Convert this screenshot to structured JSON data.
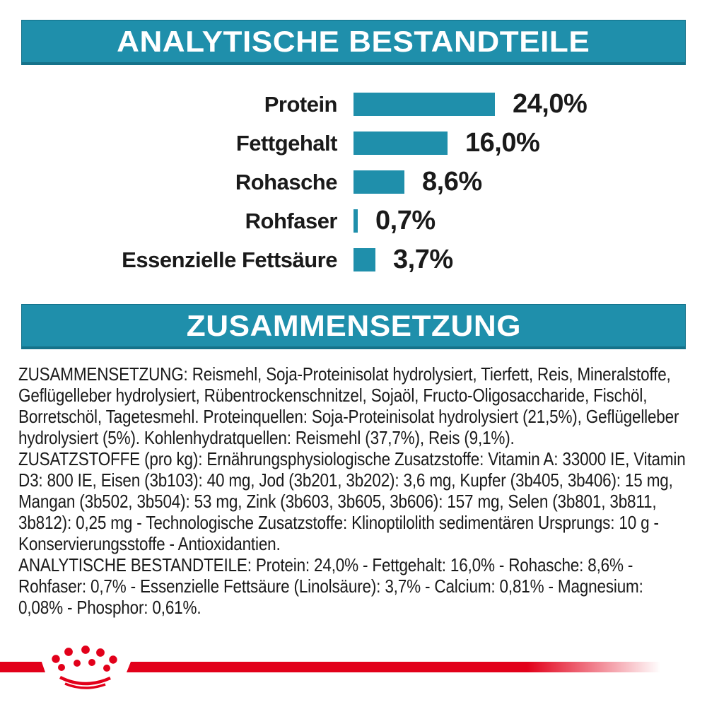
{
  "colors": {
    "teal": "#1F8FAB",
    "red": "#E2001A",
    "ink": "#1A1A1A",
    "header_text": "#FFFFFF"
  },
  "sections": {
    "analytical_header": "ANALYTISCHE BESTANDTEILE",
    "composition_header": "ZUSAMMENSETZUNG"
  },
  "chart_data": {
    "type": "bar",
    "orientation": "horizontal",
    "title": "ANALYTISCHE BESTANDTEILE",
    "unit": "%",
    "categories": [
      "Protein",
      "Fettgehalt",
      "Rohasche",
      "Rohfaser",
      "Essenzielle Fettsäure"
    ],
    "values": [
      24.0,
      16.0,
      8.6,
      0.7,
      3.7
    ],
    "value_labels": [
      "24,0%",
      "16,0%",
      "8,6%",
      "0,7%",
      "3,7%"
    ],
    "bar_color": "#1F8FAB",
    "xlim": [
      0,
      24
    ],
    "grid": false,
    "legend": false
  },
  "composition_text": {
    "paragraphs": [
      "ZUSAMMENSETZUNG: Reismehl, Soja-Proteinisolat hydrolysiert, Tierfett, Reis, Mineralstoffe, Geflügelleber hydrolysiert, Rübentrockenschnitzel, Sojaöl, Fructo-Oligosaccharide, Fischöl, Borretschöl, Tagetesmehl. Proteinquellen: Soja-Proteinisolat hydrolysiert (21,5%), Geflügelleber hydrolysiert (5%). Kohlenhydratquellen: Reismehl (37,7%), Reis (9,1%).",
      "ZUSATZSTOFFE (pro kg): Ernährungsphysiologische Zusatzstoffe: Vitamin A: 33000 IE, Vitamin D3: 800 IE, Eisen (3b103): 40 mg, Jod (3b201, 3b202): 3,6 mg, Kupfer (3b405, 3b406): 15 mg, Mangan (3b502, 3b504): 53 mg, Zink (3b603, 3b605, 3b606): 157 mg, Selen (3b801, 3b811, 3b812): 0,25 mg - Technologische Zusatzstoffe: Klinoptilolith sedimentären Ursprungs: 10 g - Konservierungsstoffe - Antioxidantien.",
      "ANALYTISCHE BESTANDTEILE: Protein: 24,0% - Fettgehalt: 16,0% - Rohasche: 8,6% - Rohfaser: 0,7% - Essenzielle Fettsäure (Linolsäure): 3,7% - Calcium: 0,81% - Magnesium: 0,08% - Phosphor: 0,61%."
    ]
  },
  "footer": {
    "logo_icon": "crown-icon"
  }
}
